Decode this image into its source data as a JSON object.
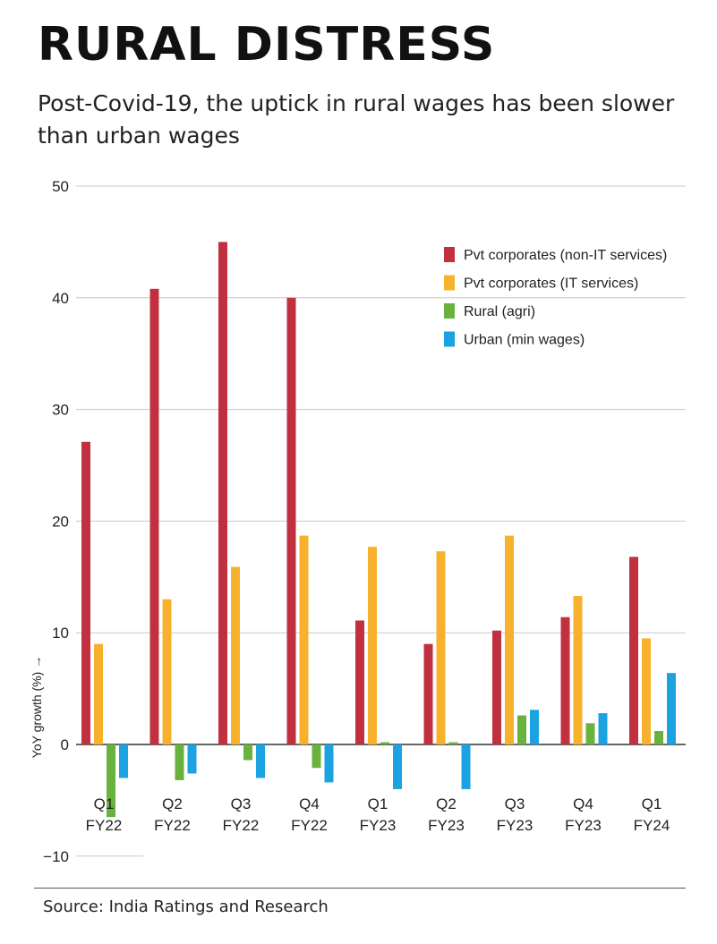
{
  "header": {
    "title": "RURAL DISTRESS",
    "subtitle": "Post-Covid-19, the uptick in rural wages has been slower than urban wages"
  },
  "footer": {
    "source": "Source: India Ratings and Research"
  },
  "colors": {
    "Pvt corporates (non-IT services)": "#c1303f",
    "Pvt corporates (IT services)": "#f8b12c",
    "Rural (agri)": "#6ab23e",
    "Urban (min wages)": "#1aa3e0"
  },
  "chart_data": {
    "type": "bar",
    "title": "RURAL DISTRESS",
    "ylabel": "YoY growth (%) →",
    "xlabel": "",
    "ylim": [
      -10,
      50
    ],
    "yticks": [
      -10,
      0,
      10,
      20,
      30,
      40,
      50
    ],
    "grid": true,
    "legend_position": "top-right",
    "categories": [
      {
        "q": "Q1",
        "fy": "FY22"
      },
      {
        "q": "Q2",
        "fy": "FY22"
      },
      {
        "q": "Q3",
        "fy": "FY22"
      },
      {
        "q": "Q4",
        "fy": "FY22"
      },
      {
        "q": "Q1",
        "fy": "FY23"
      },
      {
        "q": "Q2",
        "fy": "FY23"
      },
      {
        "q": "Q3",
        "fy": "FY23"
      },
      {
        "q": "Q4",
        "fy": "FY23"
      },
      {
        "q": "Q1",
        "fy": "FY24"
      }
    ],
    "series": [
      {
        "name": "Pvt corporates (non-IT services)",
        "values": [
          27.1,
          40.8,
          45.0,
          40.0,
          11.1,
          9.0,
          10.2,
          11.4,
          16.8
        ]
      },
      {
        "name": "Pvt corporates (IT services)",
        "values": [
          9.0,
          13.0,
          15.9,
          18.7,
          17.7,
          17.3,
          18.7,
          13.3,
          9.5
        ]
      },
      {
        "name": "Rural (agri)",
        "values": [
          -6.5,
          -3.2,
          -1.4,
          -2.1,
          0.2,
          0.2,
          2.6,
          1.9,
          1.2
        ]
      },
      {
        "name": "Urban (min wages)",
        "values": [
          -3.0,
          -2.6,
          -3.0,
          -3.4,
          -4.0,
          -4.0,
          3.1,
          2.8,
          6.4
        ]
      }
    ]
  }
}
